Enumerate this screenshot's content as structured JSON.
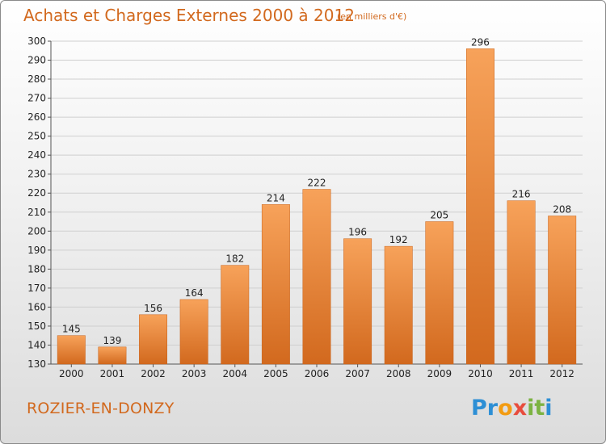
{
  "header": {
    "title": "Achats et Charges Externes 2000 à 2012",
    "unit": "(en milliers d'€)"
  },
  "footer": {
    "commune": "ROZIER-EN-DONZY",
    "logo_letters": [
      {
        "ch": "P",
        "color": "#2d8fd5"
      },
      {
        "ch": "r",
        "color": "#2d8fd5"
      },
      {
        "ch": "o",
        "color": "#f39c12"
      },
      {
        "ch": "x",
        "color": "#e84c3d"
      },
      {
        "ch": "i",
        "color": "#7cb342"
      },
      {
        "ch": "t",
        "color": "#7cb342"
      },
      {
        "ch": "i",
        "color": "#2d8fd5"
      }
    ]
  },
  "chart_data": {
    "type": "bar",
    "title": "Achats et Charges Externes 2000 à 2012",
    "subtitle": "(en milliers d'€)",
    "categories": [
      "2000",
      "2001",
      "2002",
      "2003",
      "2004",
      "2005",
      "2006",
      "2007",
      "2008",
      "2009",
      "2010",
      "2011",
      "2012"
    ],
    "values": [
      145,
      139,
      156,
      164,
      182,
      214,
      222,
      196,
      192,
      205,
      296,
      216,
      208
    ],
    "ylim": [
      130,
      300
    ],
    "yticks": [
      130,
      140,
      150,
      160,
      170,
      180,
      190,
      200,
      210,
      220,
      230,
      240,
      250,
      260,
      270,
      280,
      290,
      300
    ],
    "grid": true,
    "bar_color_top": "#f7a25a",
    "bar_color_bottom": "#d2691e",
    "grid_color": "#cfcfcf"
  }
}
